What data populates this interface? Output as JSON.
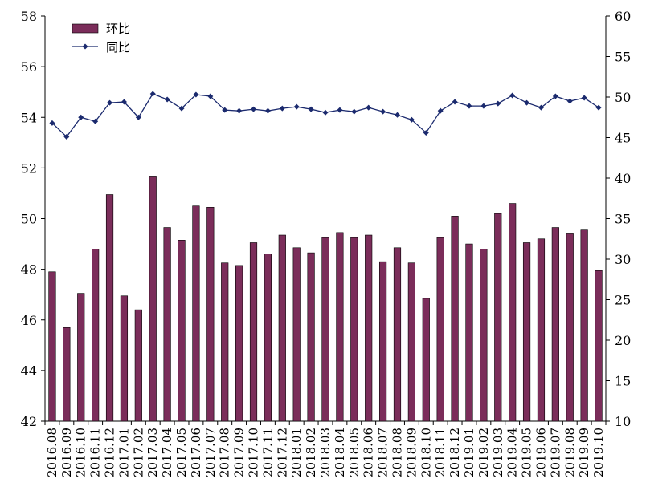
{
  "chart_data": {
    "type": "bar+line",
    "categories": [
      "2016.08",
      "2016.09",
      "2016.10",
      "2016.11",
      "2016.12",
      "2017.01",
      "2017.02",
      "2017.03",
      "2017.04",
      "2017.05",
      "2017.06",
      "2017.07",
      "2017.08",
      "2017.09",
      "2017.10",
      "2017.11",
      "2017.12",
      "2018.01",
      "2018.02",
      "2018.03",
      "2018.04",
      "2018.05",
      "2018.06",
      "2018.07",
      "2018.08",
      "2018.09",
      "2018.10",
      "2018.11",
      "2018.12",
      "2019.01",
      "2019.02",
      "2019.03",
      "2019.04",
      "2019.05",
      "2019.06",
      "2019.07",
      "2019.08",
      "2019.09",
      "2019.10"
    ],
    "series": [
      {
        "name": "环比",
        "type": "bar",
        "axis": "left",
        "color": "#7b2d5a",
        "values": [
          47.9,
          45.7,
          47.05,
          48.8,
          50.95,
          46.95,
          46.4,
          51.65,
          49.65,
          49.15,
          50.5,
          50.45,
          48.25,
          48.15,
          49.05,
          48.6,
          49.35,
          48.85,
          48.65,
          49.25,
          49.45,
          49.25,
          49.35,
          48.3,
          48.85,
          48.25,
          46.85,
          49.25,
          50.1,
          49.0,
          48.8,
          50.2,
          50.6,
          49.05,
          49.2,
          49.65,
          49.4,
          49.55,
          47.95
        ]
      },
      {
        "name": "同比",
        "type": "line",
        "axis": "right",
        "color": "#1b2a6e",
        "values": [
          46.8,
          45.1,
          47.5,
          47.0,
          49.3,
          49.4,
          47.5,
          50.4,
          49.7,
          48.6,
          50.3,
          50.1,
          48.4,
          48.3,
          48.5,
          48.3,
          48.6,
          48.8,
          48.5,
          48.1,
          48.4,
          48.2,
          48.7,
          48.2,
          47.8,
          47.2,
          45.6,
          48.3,
          49.4,
          48.9,
          48.9,
          49.2,
          50.2,
          49.3,
          48.7,
          50.1,
          49.5,
          49.9,
          48.7
        ]
      }
    ],
    "left_axis": {
      "min": 42,
      "max": 58,
      "ticks": [
        42,
        44,
        46,
        48,
        50,
        52,
        54,
        56,
        58
      ]
    },
    "right_axis": {
      "min": 10,
      "max": 60,
      "ticks": [
        10,
        15,
        20,
        25,
        30,
        35,
        40,
        45,
        50,
        55,
        60
      ]
    },
    "legend_position": "top-left",
    "grid": false,
    "title": "",
    "xlabel": "",
    "ylabel": "",
    "y2label": ""
  }
}
